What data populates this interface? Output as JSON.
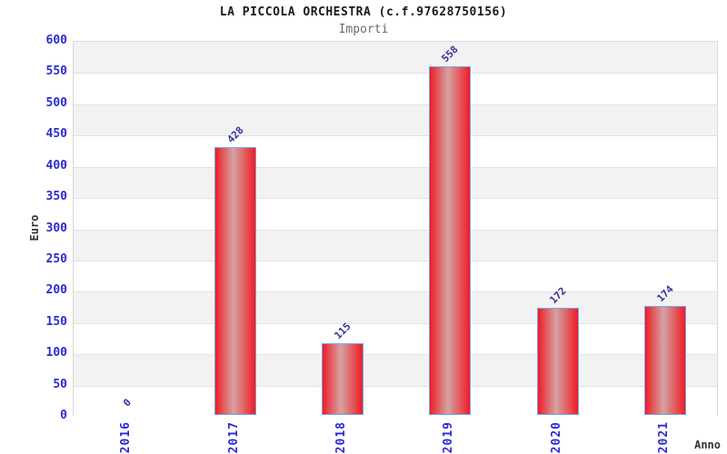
{
  "chart_data": {
    "type": "bar",
    "title": "LA PICCOLA ORCHESTRA (c.f.97628750156)",
    "subtitle": "Importi",
    "categories": [
      "2016",
      "2017",
      "2018",
      "2019",
      "2020",
      "2021"
    ],
    "values": [
      0,
      428,
      115,
      558,
      172,
      174
    ],
    "value_labels": [
      "0",
      "428",
      "115",
      "558",
      "172",
      "174"
    ],
    "xlabel": "Anno",
    "ylabel": "Euro",
    "ylim": [
      0,
      600
    ],
    "ytick_step": 50,
    "ytick_labels": [
      "0",
      "50",
      "100",
      "150",
      "200",
      "250",
      "300",
      "350",
      "400",
      "450",
      "500",
      "550",
      "600"
    ],
    "grid": true,
    "legend": "none",
    "band_colors": [
      "#f2f2f2",
      "#ffffff"
    ],
    "bar_color_edge": "#ee1c25",
    "bar_color_center": "#d4a3a3",
    "bar_border_color": "#74a7e8",
    "tick_label_color": "#2a2ad2",
    "value_label_color": "#32329e",
    "axis_title_color": "#333333",
    "title_color": "#1a1a1a",
    "subtitle_color": "#6b6b6b"
  }
}
